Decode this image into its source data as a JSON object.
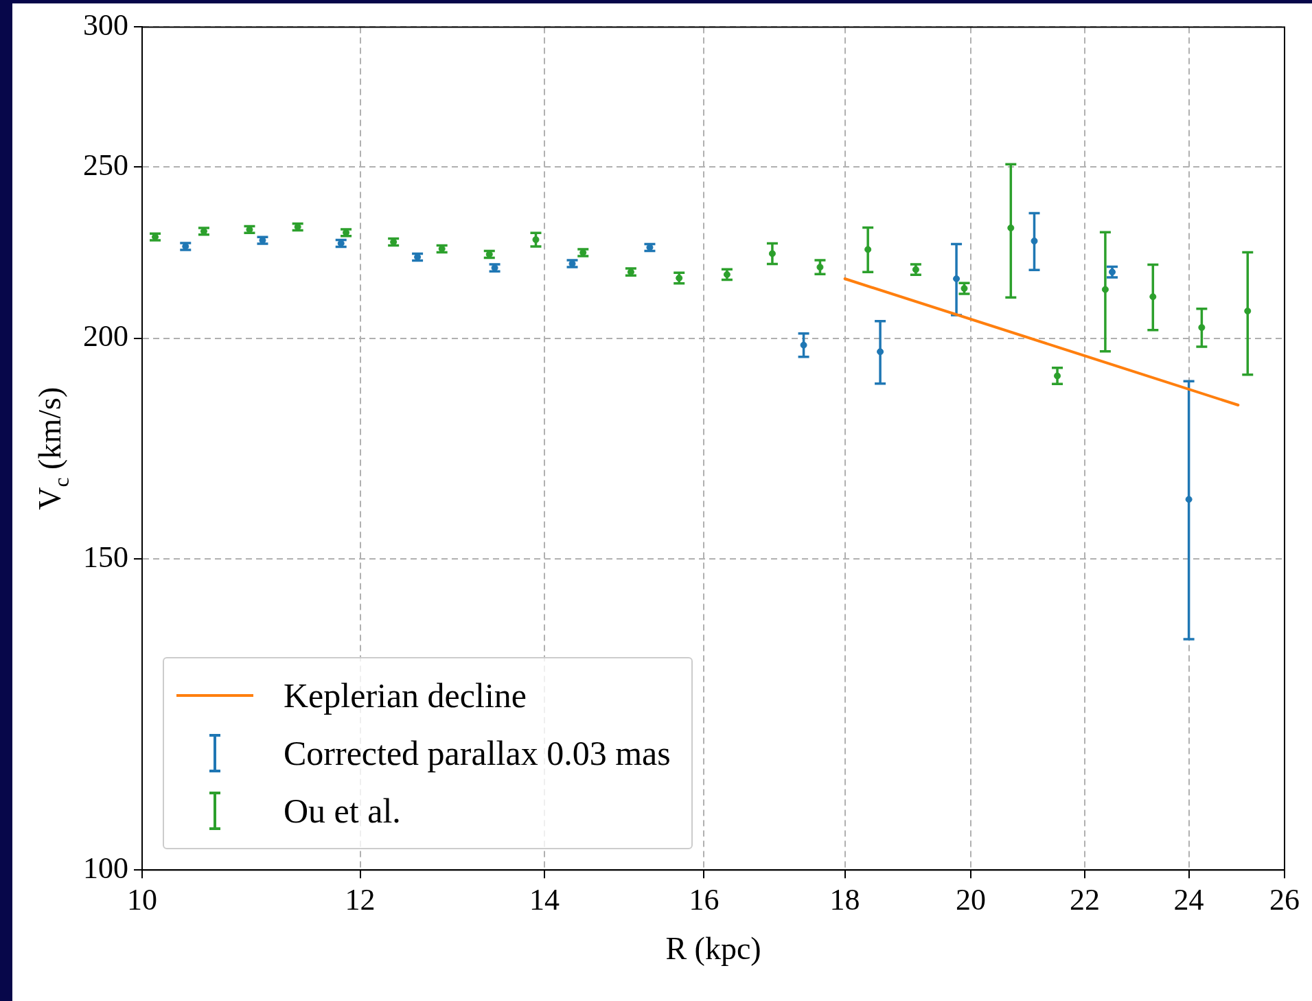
{
  "chart_data": {
    "type": "scatter",
    "xlabel": "R (kpc)",
    "ylabel": "V$_{c}$ (km/s)",
    "log": "xy",
    "xlim": [
      10,
      26
    ],
    "xticks": [
      10,
      12,
      14,
      16,
      18,
      20,
      22,
      24,
      26
    ],
    "ylim": [
      100,
      300
    ],
    "yticks": [
      100,
      150,
      200,
      250,
      300
    ],
    "grid": true,
    "legend": "bottom left",
    "marker": "circle",
    "series": [
      {
        "name": "Keplerian decline",
        "type": "line",
        "color": "#ff7f0e",
        "marker": "none",
        "x": [
          18,
          25.01
        ],
        "values": [
          216.1,
          183.3
        ]
      },
      {
        "name": "Corrected parallax 0.03 mas",
        "color": "#1f77b4",
        "x": [
          10.37,
          11.06,
          11.81,
          12.59,
          13.43,
          14.33,
          15.29,
          17.39,
          18.54,
          19.76,
          21.09,
          22.51,
          24.0
        ],
        "values": [
          225.4,
          227.2,
          226.3,
          222.3,
          219.2,
          220.4,
          225.1,
          198.2,
          196.5,
          216.1,
          227.0,
          218.0,
          162.1
        ],
        "errors": [
          1,
          1,
          1,
          1,
          1,
          1,
          1,
          3,
          8,
          10,
          8.4,
          1.5,
          27
        ]
      },
      {
        "name": "Ou et al.",
        "color": "#2ca02c",
        "x": [
          10.11,
          10.53,
          10.94,
          11.39,
          11.86,
          12.34,
          12.85,
          13.37,
          13.9,
          14.46,
          15.05,
          15.67,
          16.31,
          16.94,
          17.63,
          18.35,
          19.1,
          19.89,
          20.68,
          21.5,
          22.38,
          23.29,
          24.26,
          25.21
        ],
        "values": [
          228.2,
          229.9,
          230.4,
          231.2,
          229.5,
          226.7,
          224.7,
          223.1,
          227.4,
          223.6,
          218.0,
          216.3,
          217.3,
          223.3,
          219.4,
          224.5,
          218.7,
          213.4,
          230.9,
          190.4,
          213.1,
          211.1,
          202.8,
          207.2
        ],
        "errors": [
          1,
          1,
          1,
          1,
          1,
          1,
          1,
          1,
          2,
          1,
          1,
          1.5,
          1.5,
          3,
          2,
          6.5,
          1.5,
          1.5,
          20,
          2,
          16.5,
          9,
          5,
          16.5
        ]
      }
    ]
  }
}
